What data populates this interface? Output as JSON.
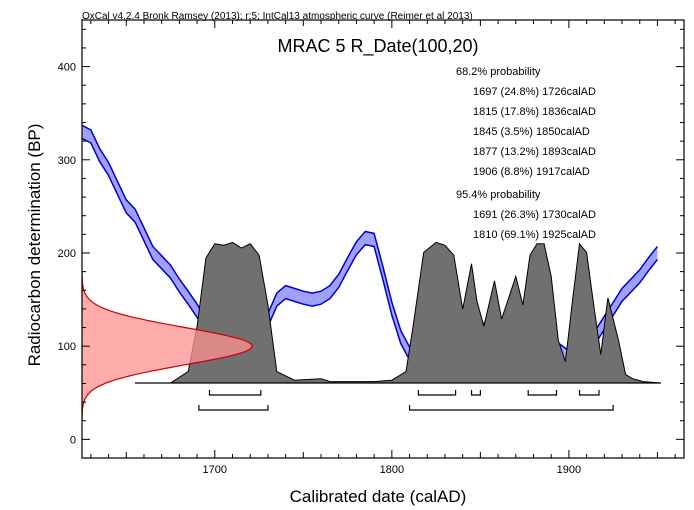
{
  "credit": "OxCal v4.2.4 Bronk Ramsey (2013); r:5; IntCal13 atmospheric curve (Reimer et al 2013)",
  "chart_data": {
    "type": "area",
    "title": "MRAC 5 R_Date(100,20)",
    "xlabel": "Calibrated date (calAD)",
    "ylabel": "Radiocarbon determination (BP)",
    "xlim": [
      1625,
      1965
    ],
    "ylim": [
      -20,
      450
    ],
    "x_ticks": [
      1700,
      1800,
      1900
    ],
    "y_ticks": [
      0,
      100,
      200,
      300,
      400
    ],
    "grid": false,
    "colors": {
      "curve_fill": "#a0a0ff",
      "curve_line": "#0000cc",
      "measurement_fill": "#ff9090",
      "measurement_line": "#cc0000",
      "posterior_fill": "#707070"
    },
    "measurement": {
      "mean": 100,
      "sd": 20
    },
    "calibration_curve": {
      "name": "IntCal13",
      "x": [
        1625,
        1630,
        1635,
        1640,
        1645,
        1650,
        1655,
        1660,
        1665,
        1670,
        1675,
        1680,
        1685,
        1690,
        1695,
        1700,
        1705,
        1710,
        1715,
        1720,
        1725,
        1730,
        1735,
        1740,
        1745,
        1750,
        1755,
        1760,
        1765,
        1770,
        1775,
        1780,
        1785,
        1790,
        1795,
        1800,
        1805,
        1810,
        1815,
        1820,
        1825,
        1830,
        1835,
        1840,
        1845,
        1850,
        1855,
        1860,
        1865,
        1870,
        1875,
        1880,
        1885,
        1890,
        1895,
        1900,
        1905,
        1910,
        1915,
        1920,
        1925,
        1930,
        1935,
        1940,
        1945,
        1950
      ],
      "mean": [
        330,
        325,
        305,
        290,
        270,
        250,
        240,
        220,
        200,
        190,
        180,
        165,
        152,
        138,
        122,
        110,
        103,
        96,
        92,
        98,
        108,
        128,
        150,
        158,
        155,
        152,
        150,
        152,
        158,
        170,
        188,
        205,
        216,
        214,
        178,
        140,
        110,
        92,
        90,
        97,
        100,
        105,
        102,
        108,
        118,
        116,
        120,
        116,
        120,
        118,
        115,
        110,
        105,
        100,
        95,
        88,
        80,
        92,
        110,
        125,
        140,
        155,
        165,
        175,
        188,
        200
      ],
      "sd": 7
    },
    "posterior": {
      "x": [
        1655,
        1675,
        1685,
        1690,
        1695,
        1700,
        1705,
        1710,
        1715,
        1720,
        1725,
        1730,
        1735,
        1745,
        1760,
        1765,
        1790,
        1800,
        1808,
        1812,
        1818,
        1825,
        1830,
        1835,
        1840,
        1845,
        1848,
        1852,
        1858,
        1862,
        1866,
        1870,
        1874,
        1878,
        1882,
        1886,
        1890,
        1894,
        1898,
        1902,
        1906,
        1910,
        1914,
        1918,
        1922,
        1928,
        1932,
        1936,
        1942,
        1952
      ],
      "density": [
        0,
        0,
        0.08,
        0.4,
        0.88,
        0.98,
        0.97,
        0.99,
        0.95,
        0.98,
        0.9,
        0.55,
        0.08,
        0.02,
        0.03,
        0.01,
        0.01,
        0.02,
        0.08,
        0.4,
        0.92,
        0.99,
        0.97,
        0.9,
        0.52,
        0.84,
        0.58,
        0.4,
        0.72,
        0.45,
        0.6,
        0.75,
        0.55,
        0.9,
        0.98,
        0.98,
        0.75,
        0.3,
        0.15,
        0.58,
        0.98,
        0.92,
        0.55,
        0.2,
        0.6,
        0.3,
        0.06,
        0.03,
        0.01,
        0
      ]
    },
    "ranges": [
      {
        "label": "68.2% probability",
        "items": [
          {
            "text": "1697 (24.8%) 1726calAD",
            "from": 1697,
            "to": 1726
          },
          {
            "text": "1815 (17.8%) 1836calAD",
            "from": 1815,
            "to": 1836
          },
          {
            "text": "1845 (3.5%) 1850calAD",
            "from": 1845,
            "to": 1850
          },
          {
            "text": "1877 (13.2%) 1893calAD",
            "from": 1877,
            "to": 1893
          },
          {
            "text": "1906 (8.8%) 1917calAD",
            "from": 1906,
            "to": 1917
          }
        ]
      },
      {
        "label": "95.4% probability",
        "items": [
          {
            "text": "1691 (26.3%) 1730calAD",
            "from": 1691,
            "to": 1730
          },
          {
            "text": "1810 (69.1%) 1925calAD",
            "from": 1810,
            "to": 1925
          }
        ]
      }
    ]
  }
}
